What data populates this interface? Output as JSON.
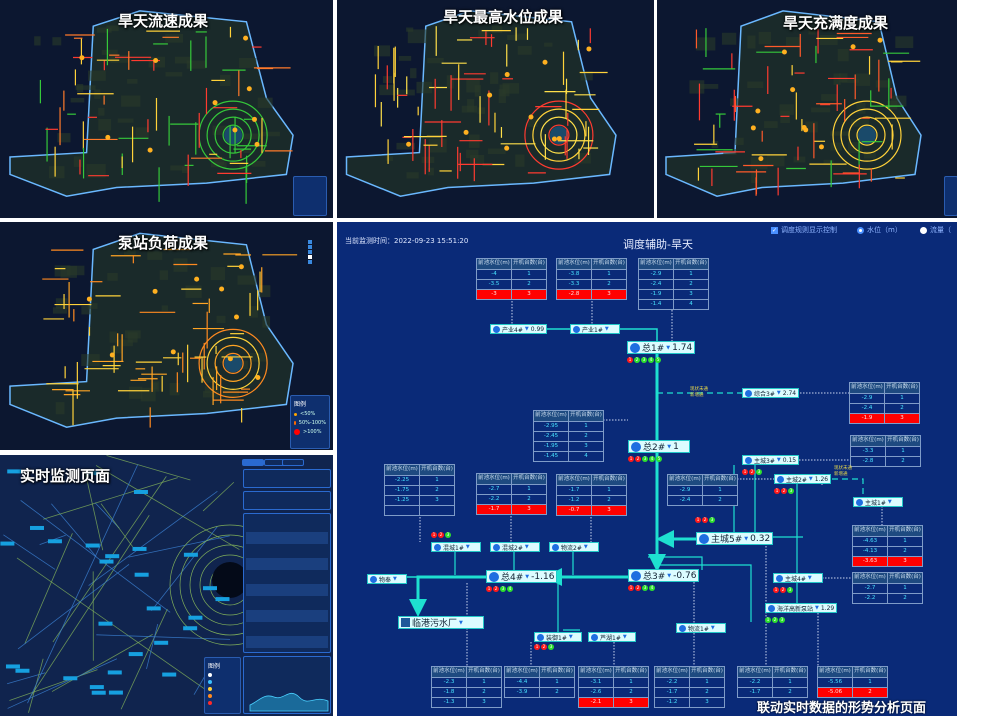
{
  "panels": {
    "flow": {
      "title": "旱天流速成果",
      "colors": [
        "#ff3b30",
        "#ffd23a",
        "#35c83a",
        "#ff7a2a"
      ]
    },
    "level": {
      "title": "旱天最高水位成果",
      "colors": [
        "#ffe04a",
        "#ff3b30",
        "#ffd23a"
      ]
    },
    "fullness": {
      "title": "旱天充满度成果",
      "colors": [
        "#ff3b30",
        "#ff5a2a",
        "#ffd23a",
        "#35c83a"
      ]
    },
    "pump": {
      "title": "泵站负荷成果",
      "colors": [
        "#ffa424",
        "#ff8a20",
        "#ffd23a"
      ],
      "legend": {
        "title": "图例",
        "items": [
          {
            "label": "<50%",
            "color": "#ffa500"
          },
          {
            "label": "50%-100%",
            "color": "#ff6a00"
          },
          {
            "label": ">100%",
            "color": "#ff0000"
          }
        ]
      }
    },
    "monitor": {
      "title": "实时监测页面",
      "legend_title": "图例",
      "colors": [
        "#7fae5a",
        "#3a7fd0"
      ]
    }
  },
  "diagram": {
    "monitor_time_label": "当前监测时间：",
    "monitor_time": "2022-09-23 15:51:20",
    "title": "调度辅助-旱天",
    "controls": {
      "rule_display": "调度规则显示控制",
      "water_level": "水位（m）",
      "flow": "流量（"
    },
    "caption": "联动实时数据的形势分析页面",
    "table_headers": [
      "前池水位(m)",
      "开机台数(台)"
    ],
    "tables": [
      {
        "rows": [
          [
            "-4",
            "1"
          ],
          [
            "-3.5",
            "2"
          ],
          [
            "-3",
            "3"
          ]
        ],
        "alarm_row": 2
      },
      {
        "rows": [
          [
            "-3.8",
            "1"
          ],
          [
            "-3.3",
            "2"
          ],
          [
            "-2.8",
            "3"
          ]
        ],
        "alarm_row": 2
      },
      {
        "rows": [
          [
            "-2.9",
            "1"
          ],
          [
            "-2.4",
            "2"
          ],
          [
            "-1.9",
            "3"
          ],
          [
            "-1.4",
            "4"
          ]
        ]
      },
      {
        "rows": [
          [
            "-2.9",
            "1"
          ],
          [
            "-2.4",
            "2"
          ],
          [
            "-1.9",
            "3"
          ]
        ],
        "alarm_row": 2
      },
      {
        "rows": [
          [
            "-2.95",
            "1"
          ],
          [
            "-2.45",
            "2"
          ],
          [
            "-1.95",
            "3"
          ],
          [
            "-1.45",
            "4"
          ]
        ]
      },
      {
        "rows": [
          [
            "-2.25",
            "1"
          ],
          [
            "-1.75",
            "2"
          ],
          [
            "-1.25",
            "3"
          ],
          [
            "",
            ""
          ]
        ]
      },
      {
        "rows": [
          [
            "-2.7",
            "1"
          ],
          [
            "-2.2",
            "2"
          ],
          [
            "-1.7",
            "3"
          ]
        ],
        "alarm_row": 2
      },
      {
        "rows": [
          [
            "-1.7",
            "1"
          ],
          [
            "-1.2",
            "2"
          ],
          [
            "-0.7",
            "3"
          ]
        ],
        "alarm_row": 2
      },
      {
        "rows": [
          [
            "-3.3",
            "1"
          ],
          [
            "-2.8",
            "2"
          ]
        ]
      },
      {
        "rows": [
          [
            "-2.9",
            "1"
          ],
          [
            "-2.4",
            "2"
          ]
        ]
      },
      {
        "rows": [
          [
            "-4.63",
            "1"
          ],
          [
            "-4.13",
            "2"
          ],
          [
            "-3.63",
            "3"
          ]
        ],
        "alarm_row": 2
      },
      {
        "rows": [
          [
            "-2.7",
            "1"
          ],
          [
            "-2.2",
            "2"
          ]
        ]
      },
      {
        "rows": [
          [
            "-2.3",
            "1"
          ],
          [
            "-1.8",
            "2"
          ],
          [
            "-1.3",
            "3"
          ]
        ]
      },
      {
        "rows": [
          [
            "-4.4",
            "1"
          ],
          [
            "-3.9",
            "2"
          ]
        ]
      },
      {
        "rows": [
          [
            "-3.1",
            "1"
          ],
          [
            "-2.6",
            "2"
          ],
          [
            "-2.1",
            "3"
          ]
        ],
        "alarm_row": 2
      },
      {
        "rows": [
          [
            "-2.2",
            "1"
          ],
          [
            "-1.7",
            "2"
          ],
          [
            "-1.2",
            "3"
          ]
        ]
      },
      {
        "rows": [
          [
            "-2.2",
            "1"
          ],
          [
            "-1.7",
            "2"
          ]
        ]
      },
      {
        "rows": [
          [
            "-5.56",
            "1"
          ],
          [
            "-5.06",
            "2"
          ]
        ],
        "alarm_row": 1
      }
    ],
    "nodes": [
      {
        "name": "产业4#",
        "value": "0.99"
      },
      {
        "name": "产业1#",
        "value": ""
      },
      {
        "name": "总1#",
        "value": "1.74",
        "status": [
          "red",
          "green",
          "green",
          "green",
          "green"
        ]
      },
      {
        "name": "综合3#",
        "value": "2.74"
      },
      {
        "name": "总2#",
        "value": "1",
        "status": [
          "red",
          "red",
          "green",
          "green",
          "green"
        ]
      },
      {
        "name": "主城3#",
        "value": "0.15",
        "status": [
          "red",
          "red",
          "green"
        ]
      },
      {
        "name": "主城2#",
        "value": "1.26",
        "status": [
          "red",
          "red",
          "green"
        ]
      },
      {
        "name": "主城1#",
        "value": ""
      },
      {
        "name": "主城5#",
        "value": "0.32",
        "status": [
          "red",
          "red",
          "green"
        ]
      },
      {
        "name": "总3#",
        "value": "-0.76",
        "status": [
          "red",
          "red",
          "green",
          "green"
        ]
      },
      {
        "name": "主城4#",
        "value": "",
        "status": [
          "red",
          "red",
          "green"
        ]
      },
      {
        "name": "海洋高新泵站",
        "value": "1.29",
        "status": [
          "green",
          "green",
          "green"
        ]
      },
      {
        "name": "物流1#",
        "value": ""
      },
      {
        "name": "混城1#",
        "value": "",
        "status": [
          "red",
          "red",
          "green"
        ]
      },
      {
        "name": "混城2#",
        "value": ""
      },
      {
        "name": "物流2#",
        "value": ""
      },
      {
        "name": "物奉",
        "value": ""
      },
      {
        "name": "总4#",
        "value": "-1.16",
        "status": [
          "red",
          "red",
          "green",
          "green"
        ]
      },
      {
        "name": "临港污水厂",
        "value": ""
      },
      {
        "name": "装御1#",
        "value": "",
        "status": [
          "red",
          "red",
          "green"
        ]
      },
      {
        "name": "芦湖1#",
        "value": ""
      }
    ],
    "notes": [
      "现状未通\n新增通",
      "现状未通\n新增通"
    ],
    "colors": {
      "background": "#0a2a78",
      "pipe": "#1ee0d0",
      "alarm": "#ff0000",
      "on": "#2ee02e",
      "off": "#ff1a1a"
    }
  }
}
